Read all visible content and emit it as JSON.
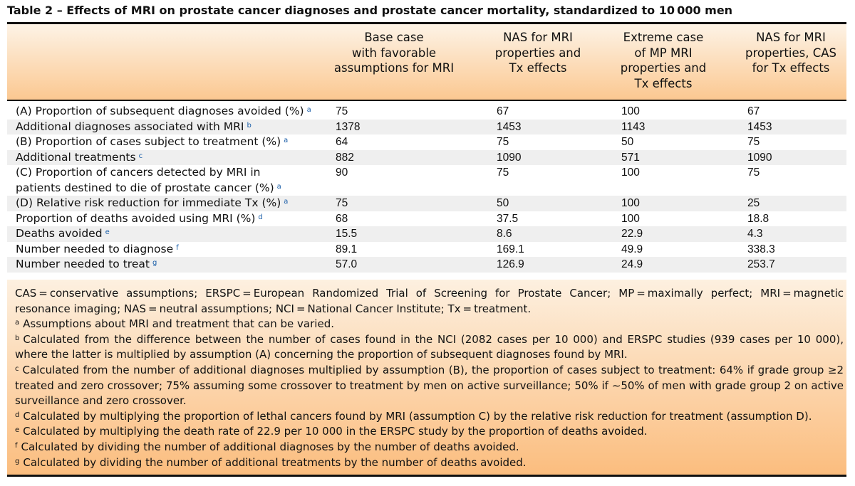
{
  "title": "Table 2 – Effects of MRI on prostate cancer diagnoses and prostate cancer mortality, standardized to 10 000 men",
  "columns": [
    {
      "line1": "Base case",
      "line2": "with favorable",
      "line3": "assumptions for MRI",
      "line4": ""
    },
    {
      "line1": "NAS for MRI",
      "line2": "properties and",
      "line3": "Tx effects",
      "line4": ""
    },
    {
      "line1": "Extreme case",
      "line2": "of MP MRI",
      "line3": "properties and",
      "line4": "Tx effects"
    },
    {
      "line1": "NAS for MRI",
      "line2": "properties, CAS",
      "line3": "for Tx effects",
      "line4": ""
    }
  ],
  "rows": [
    {
      "label": "(A) Proportion of subsequent diagnoses avoided (%)",
      "label2": "",
      "note": "a",
      "values": [
        "75",
        "67",
        "100",
        "67"
      ]
    },
    {
      "label": "Additional diagnoses associated with MRI",
      "label2": "",
      "note": "b",
      "values": [
        "1378",
        "1453",
        "1143",
        "1453"
      ]
    },
    {
      "label": "(B) Proportion of cases subject to treatment (%)",
      "label2": "",
      "note": "a",
      "values": [
        "64",
        "75",
        "50",
        "75"
      ]
    },
    {
      "label": "Additional treatments",
      "label2": "",
      "note": "c",
      "values": [
        "882",
        "1090",
        "571",
        "1090"
      ]
    },
    {
      "label": "(C) Proportion of cancers detected by MRI in",
      "label2": "patients destined to die of prostate cancer (%)",
      "note": "a",
      "values": [
        "90",
        "75",
        "100",
        "75"
      ]
    },
    {
      "label": "(D) Relative risk reduction for immediate Tx (%)",
      "label2": "",
      "note": "a",
      "values": [
        "75",
        "50",
        "100",
        "25"
      ]
    },
    {
      "label": "Proportion of deaths avoided using MRI (%)",
      "label2": "",
      "note": "d",
      "values": [
        "68",
        "37.5",
        "100",
        "18.8"
      ]
    },
    {
      "label": "Deaths avoided",
      "label2": "",
      "note": "e",
      "values": [
        "15.5",
        "8.6",
        "22.9",
        "4.3"
      ]
    },
    {
      "label": "Number needed to diagnose",
      "label2": "",
      "note": "f",
      "values": [
        "89.1",
        "169.1",
        "49.9",
        "338.3"
      ]
    },
    {
      "label": "Number needed to treat",
      "label2": "",
      "note": "g",
      "values": [
        "57.0",
        "126.9",
        "24.9",
        "253.7"
      ]
    }
  ],
  "footnotes": {
    "abbreviations": "CAS = conservative assumptions; ERSPC = European Randomized Trial of Screening for Prostate Cancer; MP = maximally perfect; MRI = magnetic resonance imaging; NAS = neutral assumptions; NCI = National Cancer Institute; Tx = treatment.",
    "notes": [
      {
        "mark": "a",
        "text": "Assumptions about MRI and treatment that can be varied."
      },
      {
        "mark": "b",
        "text": "Calculated from the difference between the number of cases found in the NCI (2082 cases per 10 000) and ERSPC studies (939 cases per 10 000), where the latter is multiplied by assumption (A) concerning the proportion of subsequent diagnoses found by MRI."
      },
      {
        "mark": "c",
        "text": "Calculated from the number of additional diagnoses multiplied by assumption (B), the proportion of cases subject to treatment: 64% if grade group ≥2 treated and zero crossover; 75% assuming some crossover to treatment by men on active surveillance; 50% if ∼50% of men with grade group 2 on active surveillance and zero crossover."
      },
      {
        "mark": "d",
        "text": "Calculated by multiplying the proportion of lethal cancers found by MRI (assumption C) by the relative risk reduction for treatment (assumption D)."
      },
      {
        "mark": "e",
        "text": "Calculated by multiplying the death rate of 22.9 per 10 000 in the ERSPC study by the proportion of deaths avoided."
      },
      {
        "mark": "f",
        "text": "Calculated by dividing the number of additional diagnoses by the number of deaths avoided."
      },
      {
        "mark": "g",
        "text": "Calculated by dividing the number of additional treatments by the number of deaths avoided."
      }
    ]
  }
}
